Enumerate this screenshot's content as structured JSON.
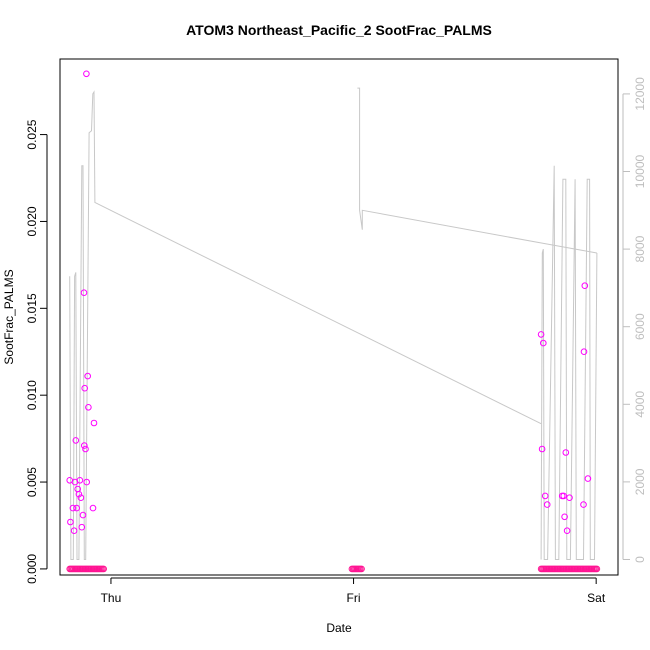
{
  "chart_data": {
    "type": "scatter",
    "title": "ATOM3 Northeast_Pacific_2 SootFrac_PALMS",
    "xlabel": "Date",
    "ylabel": "SootFrac_PALMS",
    "x_unit": "days since Thu 00:00",
    "x_ticks": [
      {
        "x": 0,
        "label": "Thu"
      },
      {
        "x": 1,
        "label": "Fri"
      },
      {
        "x": 2,
        "label": "Sat"
      }
    ],
    "xlim": [
      -0.21,
      2.09
    ],
    "ylim": [
      -0.00035,
      0.02935
    ],
    "y_ticks": [
      {
        "v": 0.0,
        "label": "0.000"
      },
      {
        "v": 0.005,
        "label": "0.005"
      },
      {
        "v": 0.01,
        "label": "0.010"
      },
      {
        "v": 0.015,
        "label": "0.015"
      },
      {
        "v": 0.02,
        "label": "0.020"
      },
      {
        "v": 0.025,
        "label": "0.025"
      }
    ],
    "y2lim": [
      -400,
      12900
    ],
    "y2_ticks": [
      {
        "v": 0,
        "label": "0"
      },
      {
        "v": 2000,
        "label": "2000"
      },
      {
        "v": 4000,
        "label": "4000"
      },
      {
        "v": 6000,
        "label": "6000"
      },
      {
        "v": 8000,
        "label": "8000"
      },
      {
        "v": 10000,
        "label": "10000"
      },
      {
        "v": 12000,
        "label": "12000"
      }
    ],
    "grid": false,
    "legend": "none",
    "colors": {
      "points_magenta": "#ff00ff",
      "points_pink": "#ff1493",
      "altitude_line": "#c8c8c8",
      "axis": "#000000",
      "right_axis": "#bebebe"
    },
    "series": [
      {
        "role": "scatter-nonzero",
        "axis": "left",
        "color": "#ff00ff",
        "points": [
          {
            "x": -0.17,
            "y": 0.0051
          },
          {
            "x": -0.167,
            "y": 0.0027
          },
          {
            "x": -0.157,
            "y": 0.0035
          },
          {
            "x": -0.152,
            "y": 0.0022
          },
          {
            "x": -0.148,
            "y": 0.005
          },
          {
            "x": -0.145,
            "y": 0.0074
          },
          {
            "x": -0.141,
            "y": 0.0035
          },
          {
            "x": -0.137,
            "y": 0.0046
          },
          {
            "x": -0.132,
            "y": 0.0043
          },
          {
            "x": -0.128,
            "y": 0.0051
          },
          {
            "x": -0.124,
            "y": 0.0041
          },
          {
            "x": -0.12,
            "y": 0.0024
          },
          {
            "x": -0.115,
            "y": 0.0031
          },
          {
            "x": -0.111,
            "y": 0.0159
          },
          {
            "x": -0.108,
            "y": 0.0104
          },
          {
            "x": -0.105,
            "y": 0.0069
          },
          {
            "x": -0.1,
            "y": 0.005
          },
          {
            "x": -0.096,
            "y": 0.0111
          },
          {
            "x": -0.093,
            "y": 0.0093
          },
          {
            "x": -0.074,
            "y": 0.0035
          },
          {
            "x": -0.07,
            "y": 0.0084
          },
          {
            "x": -0.101,
            "y": 0.0285
          },
          {
            "x": -0.11,
            "y": 0.0071
          },
          {
            "x": 1.773,
            "y": 0.0135
          },
          {
            "x": 1.777,
            "y": 0.0069
          },
          {
            "x": 1.782,
            "y": 0.013
          },
          {
            "x": 1.79,
            "y": 0.0042
          },
          {
            "x": 1.798,
            "y": 0.0037
          },
          {
            "x": 1.86,
            "y": 0.0042
          },
          {
            "x": 1.866,
            "y": 0.0042
          },
          {
            "x": 1.87,
            "y": 0.003
          },
          {
            "x": 1.875,
            "y": 0.0067
          },
          {
            "x": 1.88,
            "y": 0.0022
          },
          {
            "x": 1.89,
            "y": 0.0041
          },
          {
            "x": 1.948,
            "y": 0.0037
          },
          {
            "x": 1.953,
            "y": 0.0163
          },
          {
            "x": 1.95,
            "y": 0.0125
          },
          {
            "x": 1.966,
            "y": 0.0052
          }
        ]
      },
      {
        "role": "scatter-zero",
        "axis": "left",
        "color": "#ff1493",
        "y": 0.0,
        "x_ranges": [
          [
            -0.17,
            -0.028
          ],
          [
            0.993,
            1.033
          ],
          [
            1.773,
            2.003
          ]
        ],
        "x_step": 0.005
      },
      {
        "role": "line",
        "axis": "right",
        "color": "#c8c8c8",
        "segments": [
          [
            [
              -0.17,
              7300
            ],
            [
              -0.165,
              0
            ],
            [
              -0.155,
              0
            ],
            [
              -0.15,
              7300
            ],
            [
              -0.145,
              7400
            ],
            [
              -0.14,
              0
            ],
            [
              -0.132,
              0
            ],
            [
              -0.12,
              10150
            ],
            [
              -0.115,
              10150
            ],
            [
              -0.11,
              0
            ],
            [
              -0.104,
              0
            ],
            [
              -0.09,
              11000
            ],
            [
              -0.08,
              11050
            ],
            [
              -0.075,
              12000
            ],
            [
              -0.07,
              12050
            ],
            [
              -0.066,
              9200
            ],
            [
              1.773,
              3500
            ]
          ],
          [
            [
              1.016,
              12150
            ],
            [
              1.025,
              12150
            ],
            [
              1.025,
              9000
            ],
            [
              1.036,
              8500
            ],
            [
              1.036,
              9000
            ],
            [
              1.78,
              8150
            ],
            [
              2.003,
              7900
            ]
          ],
          [
            [
              1.773,
              0
            ],
            [
              1.778,
              7900
            ],
            [
              1.782,
              8000
            ],
            [
              1.786,
              0
            ],
            [
              1.8,
              0
            ],
            [
              1.827,
              10150
            ],
            [
              1.832,
              0
            ],
            [
              1.846,
              0
            ],
            [
              1.863,
              9800
            ],
            [
              1.875,
              9800
            ],
            [
              1.879,
              0
            ],
            [
              1.894,
              0
            ],
            [
              1.913,
              9800
            ],
            [
              1.918,
              0
            ],
            [
              1.948,
              0
            ],
            [
              1.963,
              9800
            ],
            [
              1.973,
              9800
            ],
            [
              1.976,
              0
            ],
            [
              1.993,
              0
            ],
            [
              2.003,
              7900
            ]
          ]
        ]
      }
    ]
  }
}
